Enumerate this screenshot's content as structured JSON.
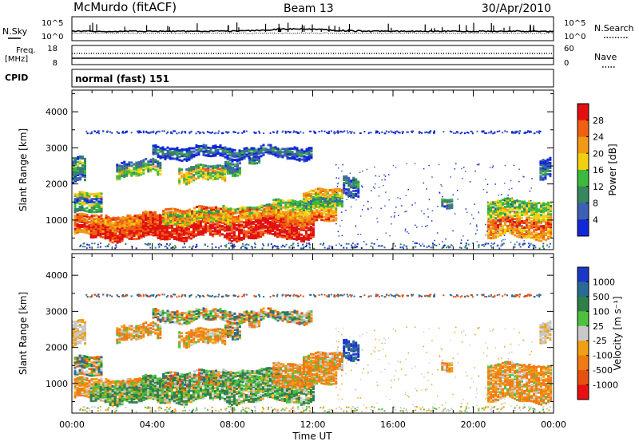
{
  "header": {
    "station": "McMurdo (fitACF)",
    "beam": "Beam 13",
    "date": "30/Apr/2010"
  },
  "side_labels": {
    "nsky": "N.Sky",
    "nsearch": "N.Search",
    "freq": "Freq.",
    "freq_unit": "[MHz]",
    "nave": "Nave",
    "cpid": "CPID",
    "cpid_value": "normal (fast) 151"
  },
  "chart_data": [
    {
      "type": "line",
      "panel": "noise",
      "ytick_labels_left": [
        "10^5",
        "10^0"
      ],
      "ytick_labels_right": [
        "10^5",
        "10^0"
      ],
      "series": [
        {
          "name": "N.Sky"
        },
        {
          "name": "N.Search"
        }
      ]
    },
    {
      "type": "line",
      "panel": "frequency",
      "ytick_labels_left": [
        "18",
        "8"
      ],
      "ytick_labels_right": [
        "60",
        "0"
      ],
      "series": [
        {
          "name": "Freq."
        },
        {
          "name": "Nave"
        }
      ]
    },
    {
      "type": "heatmap",
      "panel": "power",
      "ylabel": "Slant Range [km]",
      "yticks": [
        1000,
        2000,
        3000,
        4000
      ],
      "ylim": [
        180,
        4600
      ],
      "colorbar": {
        "label": "Power [dB]",
        "ticks": [
          "4",
          "8",
          "12",
          "16",
          "20",
          "24",
          "28"
        ],
        "colors": [
          "#1028d8",
          "#3e5fb4",
          "#36865e",
          "#3cba3c",
          "#f0d010",
          "#f09a16",
          "#f06010",
          "#e01010"
        ]
      }
    },
    {
      "type": "heatmap",
      "panel": "velocity",
      "ylabel": "Slant Range [km]",
      "yticks": [
        1000,
        2000,
        3000,
        4000
      ],
      "ylim": [
        180,
        4600
      ],
      "xlabel": "Time UT",
      "xtick_labels": [
        "00:00",
        "04:00",
        "08:00",
        "12:00",
        "16:00",
        "20:00",
        "00:00"
      ],
      "colorbar": {
        "label": "Velocity [m s⁻¹]",
        "ticks": [
          "1000",
          "500",
          "100",
          "25",
          "-25",
          "-100",
          "-500",
          "-1000"
        ],
        "colors": [
          "#1a38c8",
          "#2a6a94",
          "#2e8048",
          "#4cc23c",
          "#c8c8c8",
          "#f0a012",
          "#f07a14",
          "#e85010",
          "#e81010"
        ]
      }
    }
  ]
}
